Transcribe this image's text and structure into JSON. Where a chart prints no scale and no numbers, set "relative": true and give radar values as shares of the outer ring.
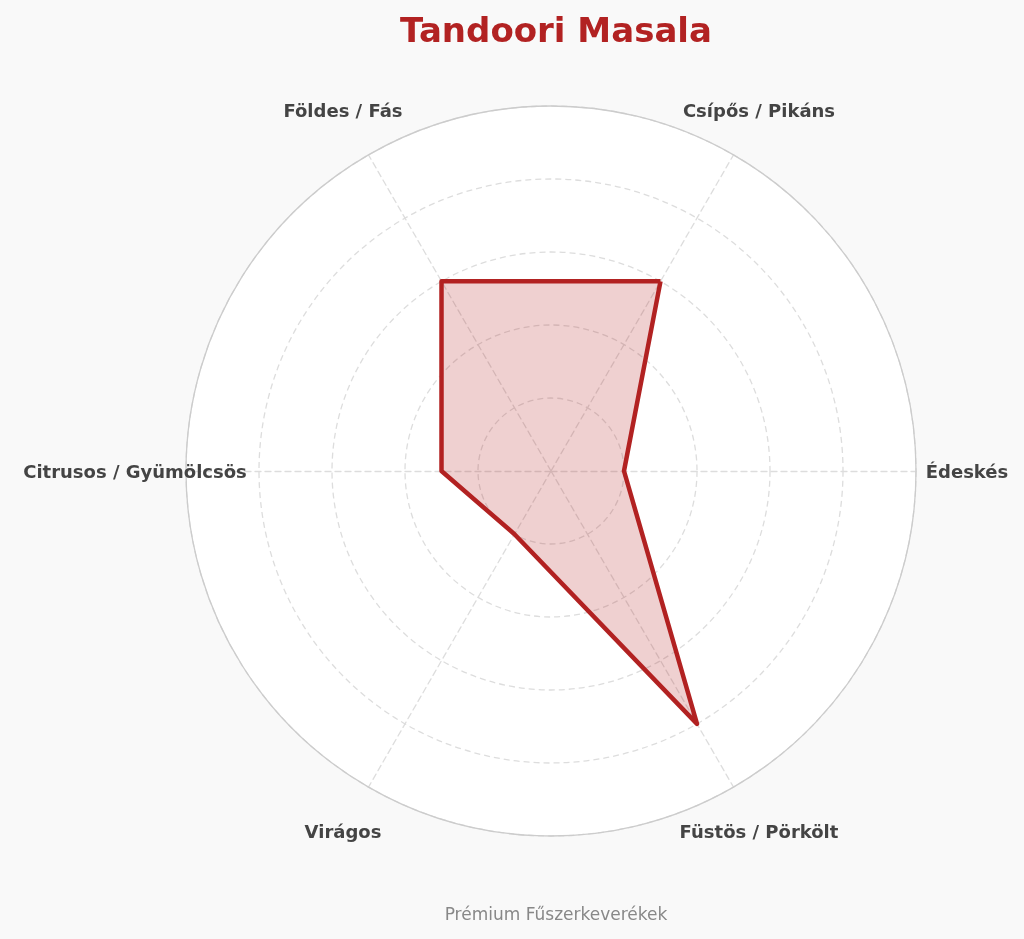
{
  "chart_data": {
    "type": "radar",
    "title": "Tandoori Masala",
    "categories": [
      "Csípős / Pikáns",
      "Édeskés",
      "Füstös / Pörkölt",
      "Virágos",
      "Citrusos / Gyümölcsös",
      "Földes / Fás"
    ],
    "series": [
      {
        "color": "#b22222",
        "values": [
          0.6,
          0.2,
          0.8,
          0.2,
          0.3,
          0.6
        ]
      }
    ],
    "relative": true,
    "grid": true,
    "marker": "none",
    "line_style": "solid",
    "annotations": [
      "Prémium Fűszerkeverékek"
    ]
  }
}
